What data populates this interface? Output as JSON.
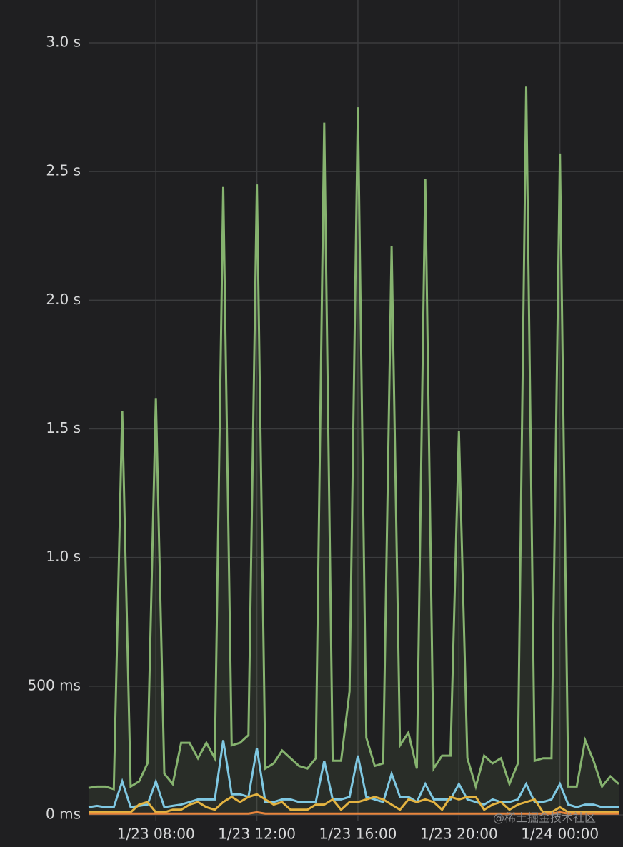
{
  "chart_data": {
    "type": "line",
    "x": [
      "1/23 05:20",
      "1/23 05:40",
      "1/23 06:00",
      "1/23 06:20",
      "1/23 06:40",
      "1/23 07:00",
      "1/23 07:20",
      "1/23 07:40",
      "1/23 08:00",
      "1/23 08:20",
      "1/23 08:40",
      "1/23 09:00",
      "1/23 09:20",
      "1/23 09:40",
      "1/23 10:00",
      "1/23 10:20",
      "1/23 10:40",
      "1/23 11:00",
      "1/23 11:20",
      "1/23 11:40",
      "1/23 12:00",
      "1/23 12:20",
      "1/23 12:40",
      "1/23 13:00",
      "1/23 13:20",
      "1/23 13:40",
      "1/23 14:00",
      "1/23 14:20",
      "1/23 14:40",
      "1/23 15:00",
      "1/23 15:20",
      "1/23 15:40",
      "1/23 16:00",
      "1/23 16:20",
      "1/23 16:40",
      "1/23 17:00",
      "1/23 17:20",
      "1/23 17:40",
      "1/23 18:00",
      "1/23 18:20",
      "1/23 18:40",
      "1/23 19:00",
      "1/23 19:20",
      "1/23 19:40",
      "1/23 20:00",
      "1/23 20:20",
      "1/23 20:40",
      "1/23 21:00",
      "1/23 21:20",
      "1/23 21:40",
      "1/23 22:00",
      "1/23 22:20",
      "1/23 22:40",
      "1/23 23:00",
      "1/23 23:20",
      "1/23 23:40",
      "1/24 00:00",
      "1/24 00:20",
      "1/24 00:40",
      "1/24 01:00",
      "1/24 01:20",
      "1/24 01:40",
      "1/24 02:00",
      "1/24 02:20"
    ],
    "series": [
      {
        "color": "#86b36f",
        "fill": true,
        "values": [
          0.105,
          0.11,
          0.11,
          0.1,
          1.57,
          0.11,
          0.13,
          0.2,
          1.62,
          0.16,
          0.12,
          0.28,
          0.28,
          0.22,
          0.28,
          0.22,
          2.44,
          0.27,
          0.28,
          0.31,
          2.45,
          0.18,
          0.2,
          0.25,
          0.22,
          0.19,
          0.18,
          0.22,
          2.69,
          0.21,
          0.21,
          0.48,
          2.75,
          0.3,
          0.19,
          0.2,
          2.21,
          0.27,
          0.32,
          0.18,
          2.47,
          0.18,
          0.23,
          0.23,
          1.49,
          0.22,
          0.11,
          0.23,
          0.2,
          0.22,
          0.12,
          0.2,
          2.83,
          0.21,
          0.22,
          0.22,
          2.57,
          0.11,
          0.11,
          0.29,
          0.21,
          0.11,
          0.15,
          0.12
        ]
      },
      {
        "color": "#7fc8e2",
        "values": [
          0.03,
          0.035,
          0.03,
          0.03,
          0.13,
          0.03,
          0.035,
          0.04,
          0.13,
          0.03,
          0.035,
          0.04,
          0.05,
          0.06,
          0.06,
          0.06,
          0.29,
          0.08,
          0.08,
          0.07,
          0.26,
          0.05,
          0.05,
          0.06,
          0.06,
          0.05,
          0.05,
          0.05,
          0.21,
          0.06,
          0.06,
          0.07,
          0.23,
          0.07,
          0.06,
          0.05,
          0.16,
          0.07,
          0.07,
          0.05,
          0.12,
          0.06,
          0.06,
          0.06,
          0.12,
          0.06,
          0.05,
          0.04,
          0.06,
          0.05,
          0.05,
          0.06,
          0.12,
          0.05,
          0.05,
          0.06,
          0.12,
          0.04,
          0.03,
          0.04,
          0.04,
          0.03,
          0.03,
          0.03
        ]
      },
      {
        "color": "#e3b341",
        "values": [
          0.01,
          0.01,
          0.01,
          0.01,
          0.01,
          0.01,
          0.04,
          0.05,
          0.01,
          0.01,
          0.02,
          0.02,
          0.04,
          0.05,
          0.03,
          0.02,
          0.05,
          0.07,
          0.05,
          0.07,
          0.08,
          0.06,
          0.04,
          0.05,
          0.02,
          0.02,
          0.02,
          0.04,
          0.04,
          0.06,
          0.02,
          0.05,
          0.05,
          0.06,
          0.07,
          0.06,
          0.04,
          0.02,
          0.06,
          0.05,
          0.06,
          0.05,
          0.02,
          0.07,
          0.06,
          0.07,
          0.07,
          0.02,
          0.04,
          0.05,
          0.02,
          0.04,
          0.05,
          0.06,
          0.01,
          0.01,
          0.03,
          0.01,
          0.01,
          0.01,
          0.01,
          0.01,
          0.01,
          0.01
        ]
      },
      {
        "color": "#e8843c",
        "values": [
          0.005,
          0.005,
          0.005,
          0.005,
          0.005,
          0.005,
          0.005,
          0.005,
          0.005,
          0.005,
          0.005,
          0.005,
          0.005,
          0.005,
          0.005,
          0.005,
          0.005,
          0.005,
          0.005,
          0.005,
          0.01,
          0.005,
          0.005,
          0.005,
          0.005,
          0.005,
          0.005,
          0.005,
          0.005,
          0.005,
          0.005,
          0.005,
          0.005,
          0.005,
          0.005,
          0.005,
          0.005,
          0.005,
          0.005,
          0.005,
          0.005,
          0.005,
          0.005,
          0.005,
          0.005,
          0.005,
          0.005,
          0.005,
          0.005,
          0.005,
          0.005,
          0.005,
          0.005,
          0.005,
          0.005,
          0.005,
          0.01,
          0.005,
          0.005,
          0.005,
          0.005,
          0.005,
          0.005,
          0.005
        ]
      }
    ],
    "xlim": [
      "1/23 05:20",
      "1/24 02:30"
    ],
    "xticks": [
      "1/23 08:00",
      "1/23 12:00",
      "1/23 16:00",
      "1/23 20:00",
      "1/24 00:00"
    ],
    "ylim": [
      0,
      3
    ],
    "yticks": [
      {
        "value": 0,
        "label": "0 ms"
      },
      {
        "value": 0.5,
        "label": "500 ms"
      },
      {
        "value": 1,
        "label": "1.0 s"
      },
      {
        "value": 1.5,
        "label": "1.5 s"
      },
      {
        "value": 2,
        "label": "2.0 s"
      },
      {
        "value": 2.5,
        "label": "2.5 s"
      },
      {
        "value": 3,
        "label": "3.0 s"
      }
    ],
    "grid": true,
    "watermark": "@稀土掘金技术社区"
  }
}
